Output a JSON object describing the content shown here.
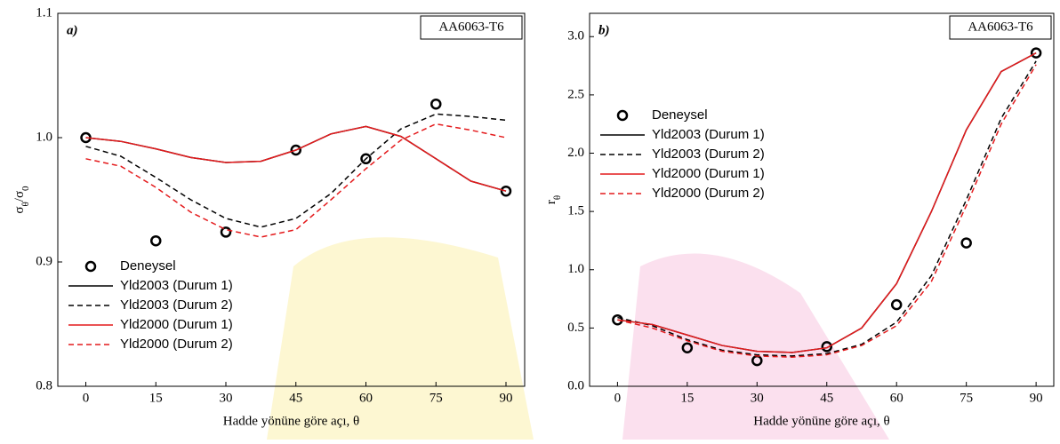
{
  "chart_data": [
    {
      "type": "line",
      "annotation": "a)",
      "material": "AA6063-T6",
      "xlabel": "Hadde yönüne göre açı, θ",
      "ylabel_parts": [
        "σ",
        "θ",
        "/σ",
        "0"
      ],
      "xlim": [
        -6,
        94
      ],
      "ylim": [
        0.8,
        1.1
      ],
      "xticks": [
        0,
        15,
        30,
        45,
        60,
        75,
        90
      ],
      "yticks": [
        0.8,
        0.9,
        {
          "value": 1.0,
          "label": "1.0"
        },
        1.1
      ],
      "legend": "lower left",
      "series": [
        {
          "name": "Deneysel",
          "color": "#000000",
          "style": "marker",
          "x": [
            0,
            15,
            30,
            45,
            60,
            75,
            90
          ],
          "values": [
            1.0,
            0.917,
            0.924,
            0.99,
            0.983,
            1.027,
            0.957
          ]
        },
        {
          "name": "Yld2003 (Durum 1)",
          "color": "#000000",
          "style": "solid",
          "x": [
            0,
            7.5,
            15,
            22.5,
            30,
            37.5,
            45,
            52.5,
            60,
            67.5,
            75,
            82.5,
            90
          ],
          "values": [
            1.0,
            0.997,
            0.991,
            0.984,
            0.98,
            0.981,
            0.99,
            1.003,
            1.009,
            1.001,
            0.983,
            0.965,
            0.957
          ]
        },
        {
          "name": "Yld2003 (Durum 2)",
          "color": "#000000",
          "style": "dashed",
          "x": [
            0,
            7.5,
            15,
            22.5,
            30,
            37.5,
            45,
            52.5,
            60,
            67.5,
            75,
            82.5,
            90
          ],
          "values": [
            0.993,
            0.985,
            0.968,
            0.95,
            0.935,
            0.928,
            0.935,
            0.955,
            0.983,
            1.007,
            1.019,
            1.017,
            1.014
          ]
        },
        {
          "name": "Yld2000 (Durum 1)",
          "color": "#e41a1c",
          "style": "solid",
          "x": [
            0,
            7.5,
            15,
            22.5,
            30,
            37.5,
            45,
            52.5,
            60,
            67.5,
            75,
            82.5,
            90
          ],
          "values": [
            1.0,
            0.997,
            0.991,
            0.984,
            0.98,
            0.981,
            0.99,
            1.003,
            1.009,
            1.001,
            0.983,
            0.965,
            0.957
          ]
        },
        {
          "name": "Yld2000 (Durum 2)",
          "color": "#e41a1c",
          "style": "dashed",
          "x": [
            0,
            7.5,
            15,
            22.5,
            30,
            37.5,
            45,
            52.5,
            60,
            67.5,
            75,
            82.5,
            90
          ],
          "values": [
            0.983,
            0.977,
            0.96,
            0.94,
            0.926,
            0.92,
            0.926,
            0.95,
            0.975,
            0.998,
            1.011,
            1.006,
            1.0
          ]
        }
      ]
    },
    {
      "type": "line",
      "annotation": "b)",
      "material": "AA6063-T6",
      "xlabel": "Hadde yönüne göre açı, θ",
      "ylabel_parts": [
        "r",
        "θ"
      ],
      "xlim": [
        -6,
        93.8
      ],
      "ylim": [
        0,
        3.2
      ],
      "xticks": [
        0,
        15,
        30,
        45,
        60,
        75,
        90
      ],
      "yticks": [
        {
          "value": 0,
          "label": "0.0"
        },
        0.5,
        {
          "value": 1,
          "label": "1.0"
        },
        1.5,
        {
          "value": 2,
          "label": "2.0"
        },
        2.5,
        {
          "value": 3,
          "label": "3.0"
        }
      ],
      "legend": "center left",
      "series": [
        {
          "name": "Deneysel",
          "color": "#000000",
          "style": "marker",
          "x": [
            0,
            15,
            30,
            45,
            60,
            75,
            90
          ],
          "values": [
            0.57,
            0.33,
            0.22,
            0.34,
            0.7,
            1.23,
            2.86
          ]
        },
        {
          "name": "Yld2003 (Durum 1)",
          "color": "#000000",
          "style": "solid",
          "x": [
            0,
            7.5,
            15,
            22.5,
            30,
            37.5,
            45,
            52.5,
            60,
            67.5,
            75,
            82.5,
            90
          ],
          "values": [
            0.57,
            0.53,
            0.44,
            0.35,
            0.3,
            0.29,
            0.33,
            0.5,
            0.88,
            1.5,
            2.2,
            2.7,
            2.86
          ]
        },
        {
          "name": "Yld2003 (Durum 2)",
          "color": "#000000",
          "style": "dashed",
          "x": [
            0,
            7.5,
            15,
            22.5,
            30,
            37.5,
            45,
            52.5,
            60,
            67.5,
            75,
            82.5,
            90
          ],
          "values": [
            0.59,
            0.52,
            0.4,
            0.31,
            0.27,
            0.26,
            0.28,
            0.36,
            0.55,
            0.95,
            1.6,
            2.3,
            2.79
          ]
        },
        {
          "name": "Yld2000 (Durum 1)",
          "color": "#e41a1c",
          "style": "solid",
          "x": [
            0,
            7.5,
            15,
            22.5,
            30,
            37.5,
            45,
            52.5,
            60,
            67.5,
            75,
            82.5,
            90
          ],
          "values": [
            0.57,
            0.53,
            0.44,
            0.35,
            0.3,
            0.29,
            0.33,
            0.5,
            0.88,
            1.5,
            2.2,
            2.7,
            2.86
          ]
        },
        {
          "name": "Yld2000 (Durum 2)",
          "color": "#e41a1c",
          "style": "dashed",
          "x": [
            0,
            7.5,
            15,
            22.5,
            30,
            37.5,
            45,
            52.5,
            60,
            67.5,
            75,
            82.5,
            90
          ],
          "values": [
            0.57,
            0.5,
            0.39,
            0.3,
            0.26,
            0.25,
            0.27,
            0.35,
            0.52,
            0.9,
            1.55,
            2.25,
            2.76
          ]
        }
      ]
    }
  ]
}
